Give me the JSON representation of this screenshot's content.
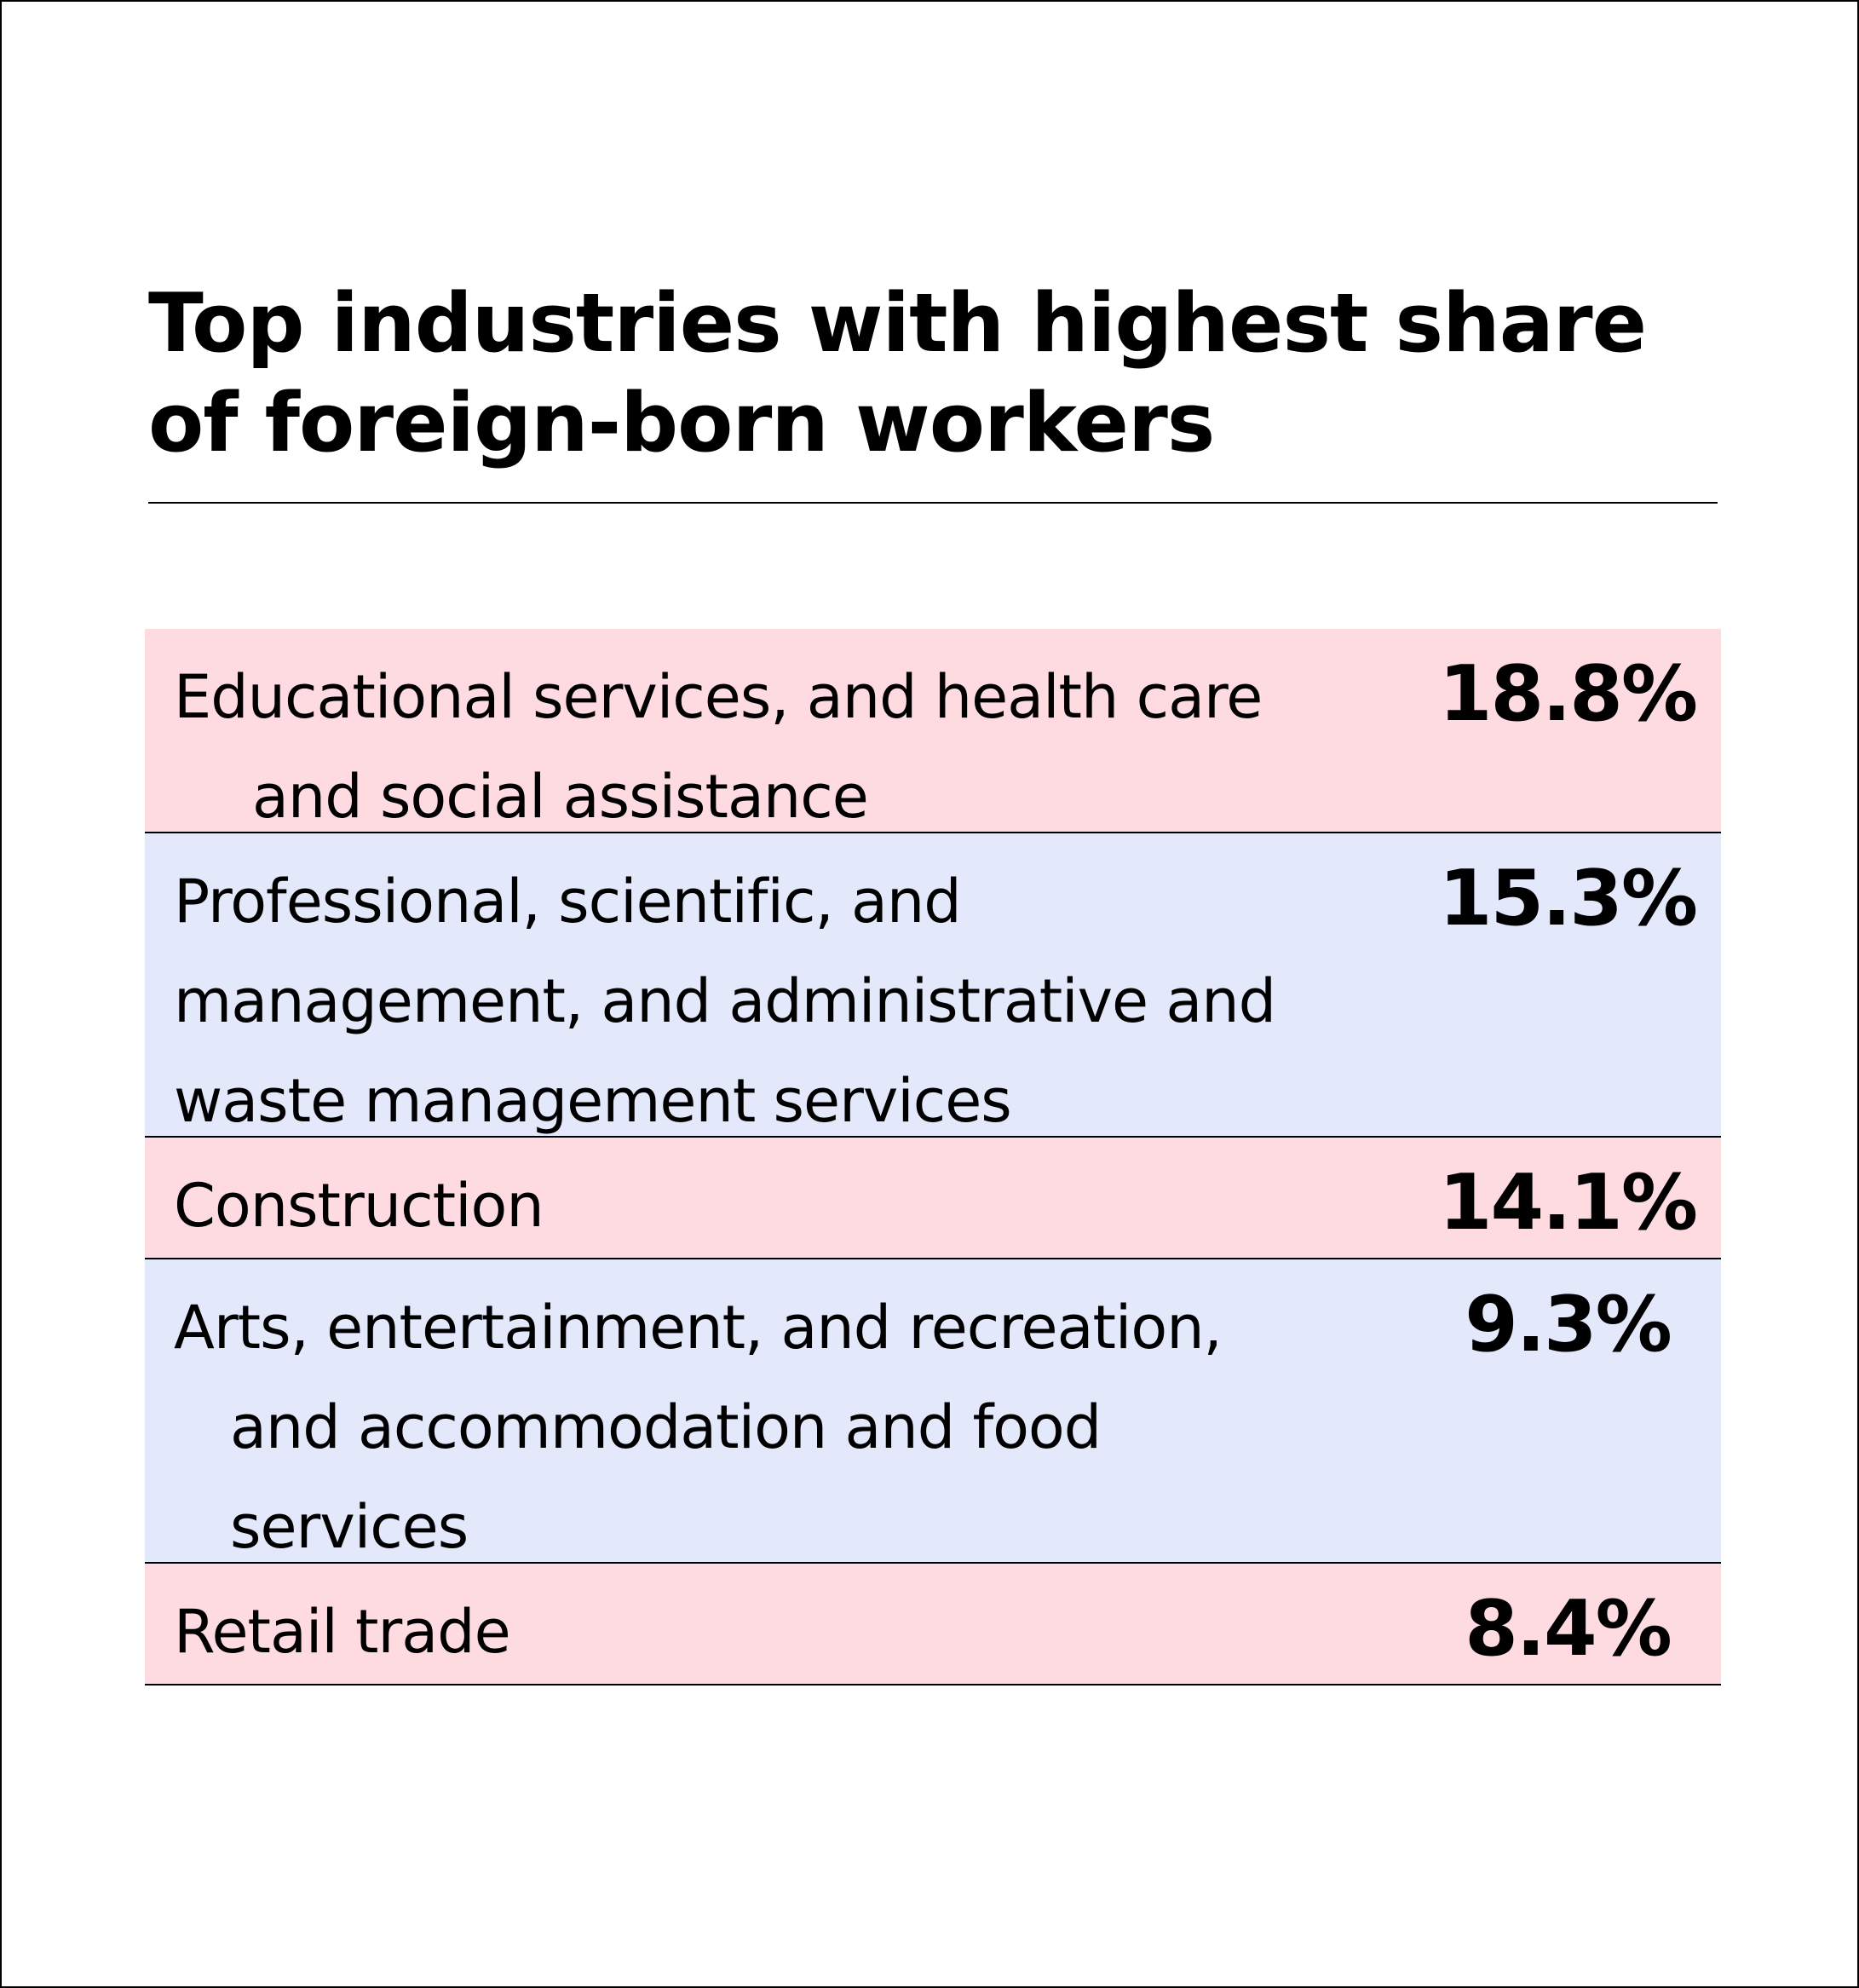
{
  "colors": {
    "row_odd": "#fddbe0",
    "row_even": "#e4e8fb",
    "text": "#000000"
  },
  "chart_data": {
    "type": "table",
    "title": "Top industries with highest share of foreign-born workers",
    "rows": [
      {
        "label": "Educational services, and health care and social assistance",
        "lines": [
          "Educational services, and health care",
          "and social assistance"
        ],
        "indent": [
          0,
          1
        ],
        "value": 18.8,
        "display": "18.8%"
      },
      {
        "label": "Professional, scientific, and management, and administrative and waste management services",
        "lines": [
          "Professional, scientific, and",
          "management, and administrative and",
          "waste management services"
        ],
        "indent": [
          0,
          0,
          0
        ],
        "value": 15.3,
        "display": "15.3%"
      },
      {
        "label": "Construction",
        "lines": [
          "Construction"
        ],
        "indent": [
          0
        ],
        "value": 14.1,
        "display": "14.1%"
      },
      {
        "label": "Arts, entertainment, and recreation, and accommodation and food services",
        "lines": [
          "Arts, entertainment, and recreation,",
          "and accommodation and food",
          "services"
        ],
        "indent": [
          0,
          1,
          1
        ],
        "value": 9.3,
        "display": "9.3%"
      },
      {
        "label": "Retail trade",
        "lines": [
          "Retail trade"
        ],
        "indent": [
          0
        ],
        "value": 8.4,
        "display": "8.4%"
      }
    ]
  }
}
